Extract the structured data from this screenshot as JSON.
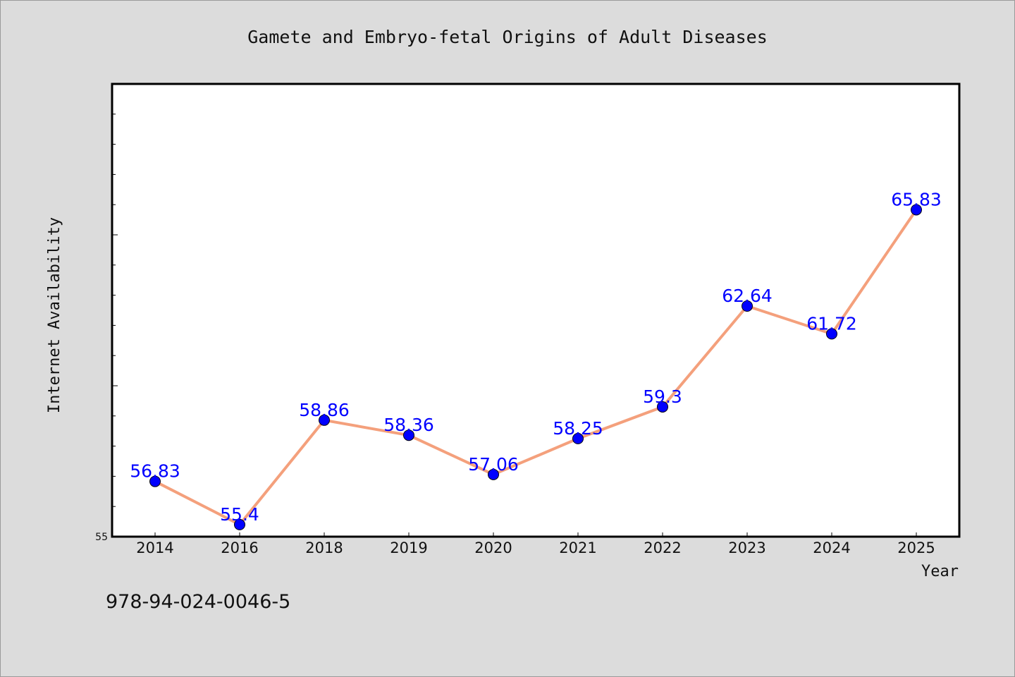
{
  "chart_data": {
    "type": "line",
    "title": "Gamete and Embryo-fetal Origins of Adult Diseases",
    "xlabel": "Year",
    "ylabel": "Internet Availability",
    "categories": [
      "2014",
      "2016",
      "2018",
      "2019",
      "2020",
      "2021",
      "2022",
      "2023",
      "2024",
      "2025"
    ],
    "series": [
      {
        "values": [
          56.83,
          55.4,
          58.86,
          58.36,
          57.06,
          58.25,
          59.3,
          62.64,
          61.72,
          65.83
        ],
        "labels": [
          "56.83",
          "55.4",
          "58.86",
          "58.36",
          "57.06",
          "58.25",
          "59.3",
          "62.64",
          "61.72",
          "65.83"
        ]
      }
    ],
    "ylim": [
      55,
      70
    ],
    "yticks_labeled": [
      "55"
    ],
    "grid": false,
    "line_color": "#f4a07c",
    "marker_color": "#0000ff",
    "label_color": "#0000ff"
  },
  "footer": {
    "isbn": "978-94-024-0046-5"
  }
}
